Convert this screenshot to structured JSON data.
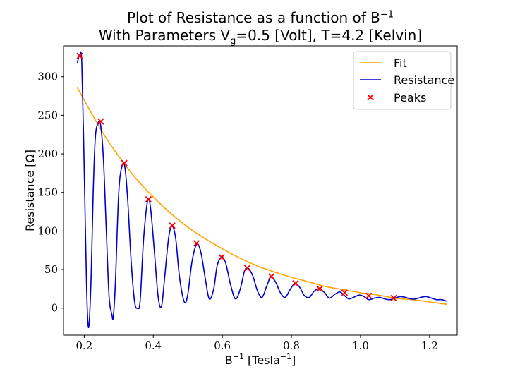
{
  "title": {
    "line1_main": "Plot of Resistance as a function of B",
    "line1_sup": "−1",
    "line2_pre": "With Parameters V",
    "line2_sub": "g",
    "line2_post": "=0.5 [Volt], T=4.2 [Kelvin]"
  },
  "axes": {
    "xlabel_main": "B",
    "xlabel_sup": "−1",
    "xlabel_unit_pre": " [Tesla",
    "xlabel_unit_sup": "−1",
    "xlabel_unit_post": "]",
    "ylabel": "Resistance [Ω]"
  },
  "colors": {
    "fit": "#ffa500",
    "resistance": "#0000cc",
    "peaks": "#ff0000"
  },
  "chart_data": {
    "type": "line",
    "xlim": [
      0.14,
      1.28
    ],
    "ylim": [
      -35,
      340
    ],
    "xticks": [
      0.2,
      0.4,
      0.6,
      0.8,
      1.0,
      1.2
    ],
    "xtick_labels": [
      "0.2",
      "0.4",
      "0.6",
      "0.8",
      "1.0",
      "1.2"
    ],
    "yticks": [
      0,
      50,
      100,
      150,
      200,
      250,
      300
    ],
    "ytick_labels": [
      "0",
      "50",
      "100",
      "150",
      "200",
      "250",
      "300"
    ],
    "grid": false,
    "legend_position": "top-right",
    "legend": [
      "Fit",
      "Resistance",
      "Peaks"
    ],
    "series": [
      {
        "name": "Fit",
        "kind": "line",
        "x": [
          0.18,
          0.25,
          0.3,
          0.35,
          0.4,
          0.45,
          0.5,
          0.55,
          0.6,
          0.65,
          0.7,
          0.75,
          0.8,
          0.85,
          0.9,
          0.95,
          1.0,
          1.05,
          1.1,
          1.15,
          1.2,
          1.25
        ],
        "y": [
          286,
          230,
          197,
          168,
          144,
          123,
          105,
          90,
          77,
          65,
          55,
          47,
          40,
          34,
          28,
          24,
          20,
          17,
          13,
          11,
          8,
          5
        ]
      },
      {
        "name": "Resistance",
        "kind": "line",
        "x": [
          0.18,
          0.187,
          0.193,
          0.2,
          0.207,
          0.213,
          0.22,
          0.226,
          0.232,
          0.24,
          0.248,
          0.256,
          0.264,
          0.272,
          0.28,
          0.284,
          0.29,
          0.3,
          0.31,
          0.318,
          0.326,
          0.336,
          0.346,
          0.355,
          0.362,
          0.372,
          0.384,
          0.392,
          0.402,
          0.414,
          0.424,
          0.434,
          0.445,
          0.455,
          0.465,
          0.476,
          0.49,
          0.5,
          0.512,
          0.526,
          0.538,
          0.55,
          0.562,
          0.575,
          0.585,
          0.598,
          0.61,
          0.624,
          0.638,
          0.652,
          0.664,
          0.674,
          0.688,
          0.702,
          0.715,
          0.728,
          0.74,
          0.754,
          0.768,
          0.782,
          0.796,
          0.81,
          0.824,
          0.838,
          0.852,
          0.866,
          0.881,
          0.896,
          0.91,
          0.926,
          0.94,
          0.952,
          0.966,
          0.98,
          0.996,
          1.01,
          1.024,
          1.04,
          1.056,
          1.07,
          1.085,
          1.1,
          1.115,
          1.13,
          1.145,
          1.16,
          1.175,
          1.19,
          1.205,
          1.22,
          1.235,
          1.25
        ],
        "y": [
          318,
          328,
          318,
          180,
          25,
          -25,
          40,
          150,
          220,
          240,
          236,
          190,
          100,
          15,
          -8,
          -12,
          30,
          150,
          185,
          182,
          140,
          60,
          8,
          0,
          10,
          90,
          140,
          130,
          80,
          15,
          3,
          45,
          93,
          106,
          90,
          40,
          8,
          18,
          60,
          83,
          72,
          40,
          12,
          25,
          55,
          66,
          58,
          30,
          12,
          25,
          48,
          52,
          42,
          22,
          14,
          28,
          40,
          34,
          20,
          14,
          24,
          32,
          27,
          16,
          14,
          22,
          25,
          20,
          13,
          18,
          21,
          17,
          12,
          14,
          17,
          15,
          11,
          13,
          14,
          12,
          11,
          13,
          15,
          14,
          12,
          12,
          14,
          15,
          13,
          11,
          11,
          9
        ]
      },
      {
        "name": "Peaks",
        "kind": "scatter",
        "x": [
          0.187,
          0.248,
          0.316,
          0.386,
          0.455,
          0.525,
          0.598,
          0.672,
          0.742,
          0.812,
          0.882,
          0.954,
          1.024,
          1.096
        ],
        "y": [
          327,
          242,
          188,
          141,
          107,
          84,
          66,
          52,
          41,
          32,
          25,
          20,
          16,
          13
        ]
      }
    ]
  }
}
